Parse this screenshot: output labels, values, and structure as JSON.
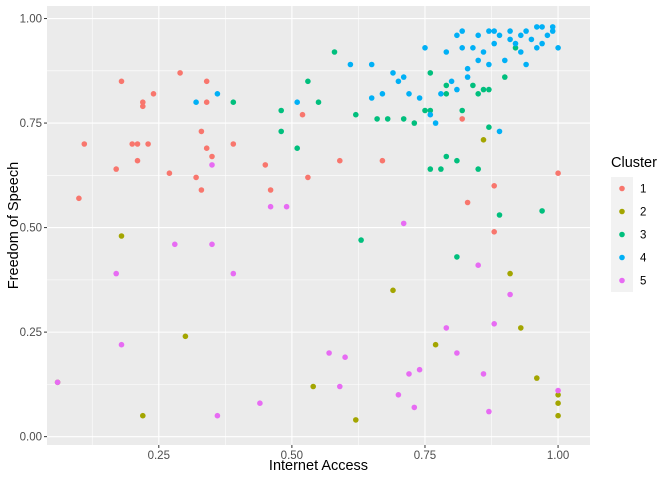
{
  "chart_data": {
    "type": "scatter",
    "xlabel": "Internet Access",
    "ylabel": "Freedom of Speech",
    "xlim": [
      0.04,
      1.06
    ],
    "ylim": [
      -0.02,
      1.03
    ],
    "x_ticks": [
      0.25,
      0.5,
      0.75,
      1.0
    ],
    "x_tick_labels": [
      "0.25",
      "0.50",
      "0.75",
      "1.00"
    ],
    "y_ticks": [
      0.0,
      0.25,
      0.5,
      0.75,
      1.0
    ],
    "y_tick_labels": [
      "0.00",
      "0.25",
      "0.50",
      "0.75",
      "1.00"
    ],
    "grid": true,
    "legend": {
      "title": "Cluster",
      "position": "right",
      "entries": [
        {
          "label": "1",
          "color": "#F8766D"
        },
        {
          "label": "2",
          "color": "#A3A500"
        },
        {
          "label": "3",
          "color": "#00BF7D"
        },
        {
          "label": "4",
          "color": "#00B0F6"
        },
        {
          "label": "5",
          "color": "#E76BF3"
        }
      ]
    },
    "series": [
      {
        "name": "1",
        "color": "#F8766D",
        "points": [
          [
            0.1,
            0.57
          ],
          [
            0.11,
            0.7
          ],
          [
            0.17,
            0.64
          ],
          [
            0.18,
            0.85
          ],
          [
            0.2,
            0.7
          ],
          [
            0.21,
            0.7
          ],
          [
            0.21,
            0.66
          ],
          [
            0.22,
            0.8
          ],
          [
            0.22,
            0.79
          ],
          [
            0.23,
            0.7
          ],
          [
            0.24,
            0.82
          ],
          [
            0.27,
            0.63
          ],
          [
            0.29,
            0.87
          ],
          [
            0.32,
            0.62
          ],
          [
            0.33,
            0.73
          ],
          [
            0.33,
            0.59
          ],
          [
            0.34,
            0.85
          ],
          [
            0.34,
            0.8
          ],
          [
            0.34,
            0.69
          ],
          [
            0.35,
            0.67
          ],
          [
            0.39,
            0.7
          ],
          [
            0.45,
            0.65
          ],
          [
            0.46,
            0.59
          ],
          [
            0.52,
            0.77
          ],
          [
            0.53,
            0.62
          ],
          [
            0.59,
            0.66
          ],
          [
            0.67,
            0.66
          ],
          [
            0.82,
            0.76
          ],
          [
            0.83,
            0.56
          ],
          [
            0.88,
            0.6
          ],
          [
            0.88,
            0.49
          ],
          [
            1.0,
            0.63
          ]
        ]
      },
      {
        "name": "2",
        "color": "#A3A500",
        "points": [
          [
            0.06,
            0.13
          ],
          [
            0.18,
            0.48
          ],
          [
            0.22,
            0.05
          ],
          [
            0.3,
            0.24
          ],
          [
            0.54,
            0.12
          ],
          [
            0.62,
            0.04
          ],
          [
            0.69,
            0.35
          ],
          [
            0.77,
            0.22
          ],
          [
            0.86,
            0.71
          ],
          [
            0.91,
            0.39
          ],
          [
            0.93,
            0.26
          ],
          [
            0.96,
            0.14
          ],
          [
            1.0,
            0.1
          ],
          [
            1.0,
            0.08
          ],
          [
            1.0,
            0.05
          ]
        ]
      },
      {
        "name": "3",
        "color": "#00BF7D",
        "points": [
          [
            0.39,
            0.8
          ],
          [
            0.48,
            0.78
          ],
          [
            0.48,
            0.73
          ],
          [
            0.51,
            0.69
          ],
          [
            0.53,
            0.85
          ],
          [
            0.55,
            0.8
          ],
          [
            0.58,
            0.92
          ],
          [
            0.62,
            0.77
          ],
          [
            0.63,
            0.47
          ],
          [
            0.66,
            0.76
          ],
          [
            0.68,
            0.76
          ],
          [
            0.71,
            0.76
          ],
          [
            0.73,
            0.75
          ],
          [
            0.75,
            0.78
          ],
          [
            0.76,
            0.87
          ],
          [
            0.76,
            0.78
          ],
          [
            0.76,
            0.64
          ],
          [
            0.78,
            0.64
          ],
          [
            0.79,
            0.84
          ],
          [
            0.79,
            0.82
          ],
          [
            0.79,
            0.67
          ],
          [
            0.81,
            0.66
          ],
          [
            0.81,
            0.43
          ],
          [
            0.82,
            0.78
          ],
          [
            0.84,
            0.84
          ],
          [
            0.85,
            0.64
          ],
          [
            0.85,
            0.82
          ],
          [
            0.86,
            0.83
          ],
          [
            0.87,
            0.83
          ],
          [
            0.87,
            0.74
          ],
          [
            0.89,
            0.53
          ],
          [
            0.9,
            0.86
          ],
          [
            0.92,
            0.93
          ],
          [
            0.97,
            0.54
          ]
        ]
      },
      {
        "name": "4",
        "color": "#00B0F6",
        "points": [
          [
            0.32,
            0.8
          ],
          [
            0.36,
            0.82
          ],
          [
            0.51,
            0.8
          ],
          [
            0.61,
            0.89
          ],
          [
            0.65,
            0.89
          ],
          [
            0.65,
            0.81
          ],
          [
            0.67,
            0.82
          ],
          [
            0.69,
            0.87
          ],
          [
            0.7,
            0.85
          ],
          [
            0.71,
            0.86
          ],
          [
            0.72,
            0.82
          ],
          [
            0.74,
            0.81
          ],
          [
            0.75,
            0.93
          ],
          [
            0.76,
            0.77
          ],
          [
            0.77,
            0.75
          ],
          [
            0.78,
            0.82
          ],
          [
            0.79,
            0.92
          ],
          [
            0.8,
            0.85
          ],
          [
            0.81,
            0.83
          ],
          [
            0.81,
            0.96
          ],
          [
            0.82,
            0.93
          ],
          [
            0.82,
            0.97
          ],
          [
            0.83,
            0.88
          ],
          [
            0.83,
            0.86
          ],
          [
            0.84,
            0.93
          ],
          [
            0.85,
            0.9
          ],
          [
            0.85,
            0.96
          ],
          [
            0.86,
            0.92
          ],
          [
            0.87,
            0.89
          ],
          [
            0.87,
            0.97
          ],
          [
            0.88,
            0.94
          ],
          [
            0.88,
            0.97
          ],
          [
            0.89,
            0.73
          ],
          [
            0.89,
            0.96
          ],
          [
            0.9,
            0.9
          ],
          [
            0.91,
            0.97
          ],
          [
            0.91,
            0.95
          ],
          [
            0.92,
            0.94
          ],
          [
            0.93,
            0.96
          ],
          [
            0.93,
            0.92
          ],
          [
            0.94,
            0.97
          ],
          [
            0.94,
            0.89
          ],
          [
            0.95,
            0.95
          ],
          [
            0.96,
            0.98
          ],
          [
            0.96,
            0.93
          ],
          [
            0.97,
            0.98
          ],
          [
            0.97,
            0.94
          ],
          [
            0.98,
            0.96
          ],
          [
            0.99,
            0.98
          ],
          [
            0.99,
            0.97
          ],
          [
            1.0,
            0.93
          ]
        ]
      },
      {
        "name": "5",
        "color": "#E76BF3",
        "points": [
          [
            0.06,
            0.13
          ],
          [
            0.17,
            0.39
          ],
          [
            0.18,
            0.22
          ],
          [
            0.28,
            0.46
          ],
          [
            0.35,
            0.46
          ],
          [
            0.36,
            0.05
          ],
          [
            0.39,
            0.39
          ],
          [
            0.44,
            0.08
          ],
          [
            0.46,
            0.55
          ],
          [
            0.49,
            0.55
          ],
          [
            0.35,
            0.65
          ],
          [
            0.57,
            0.2
          ],
          [
            0.59,
            0.12
          ],
          [
            0.6,
            0.19
          ],
          [
            0.7,
            0.1
          ],
          [
            0.71,
            0.51
          ],
          [
            0.72,
            0.15
          ],
          [
            0.73,
            0.07
          ],
          [
            0.74,
            0.16
          ],
          [
            0.79,
            0.26
          ],
          [
            0.81,
            0.2
          ],
          [
            0.85,
            0.41
          ],
          [
            0.86,
            0.15
          ],
          [
            0.87,
            0.06
          ],
          [
            0.88,
            0.27
          ],
          [
            0.91,
            0.34
          ],
          [
            1.0,
            0.11
          ]
        ]
      }
    ]
  }
}
